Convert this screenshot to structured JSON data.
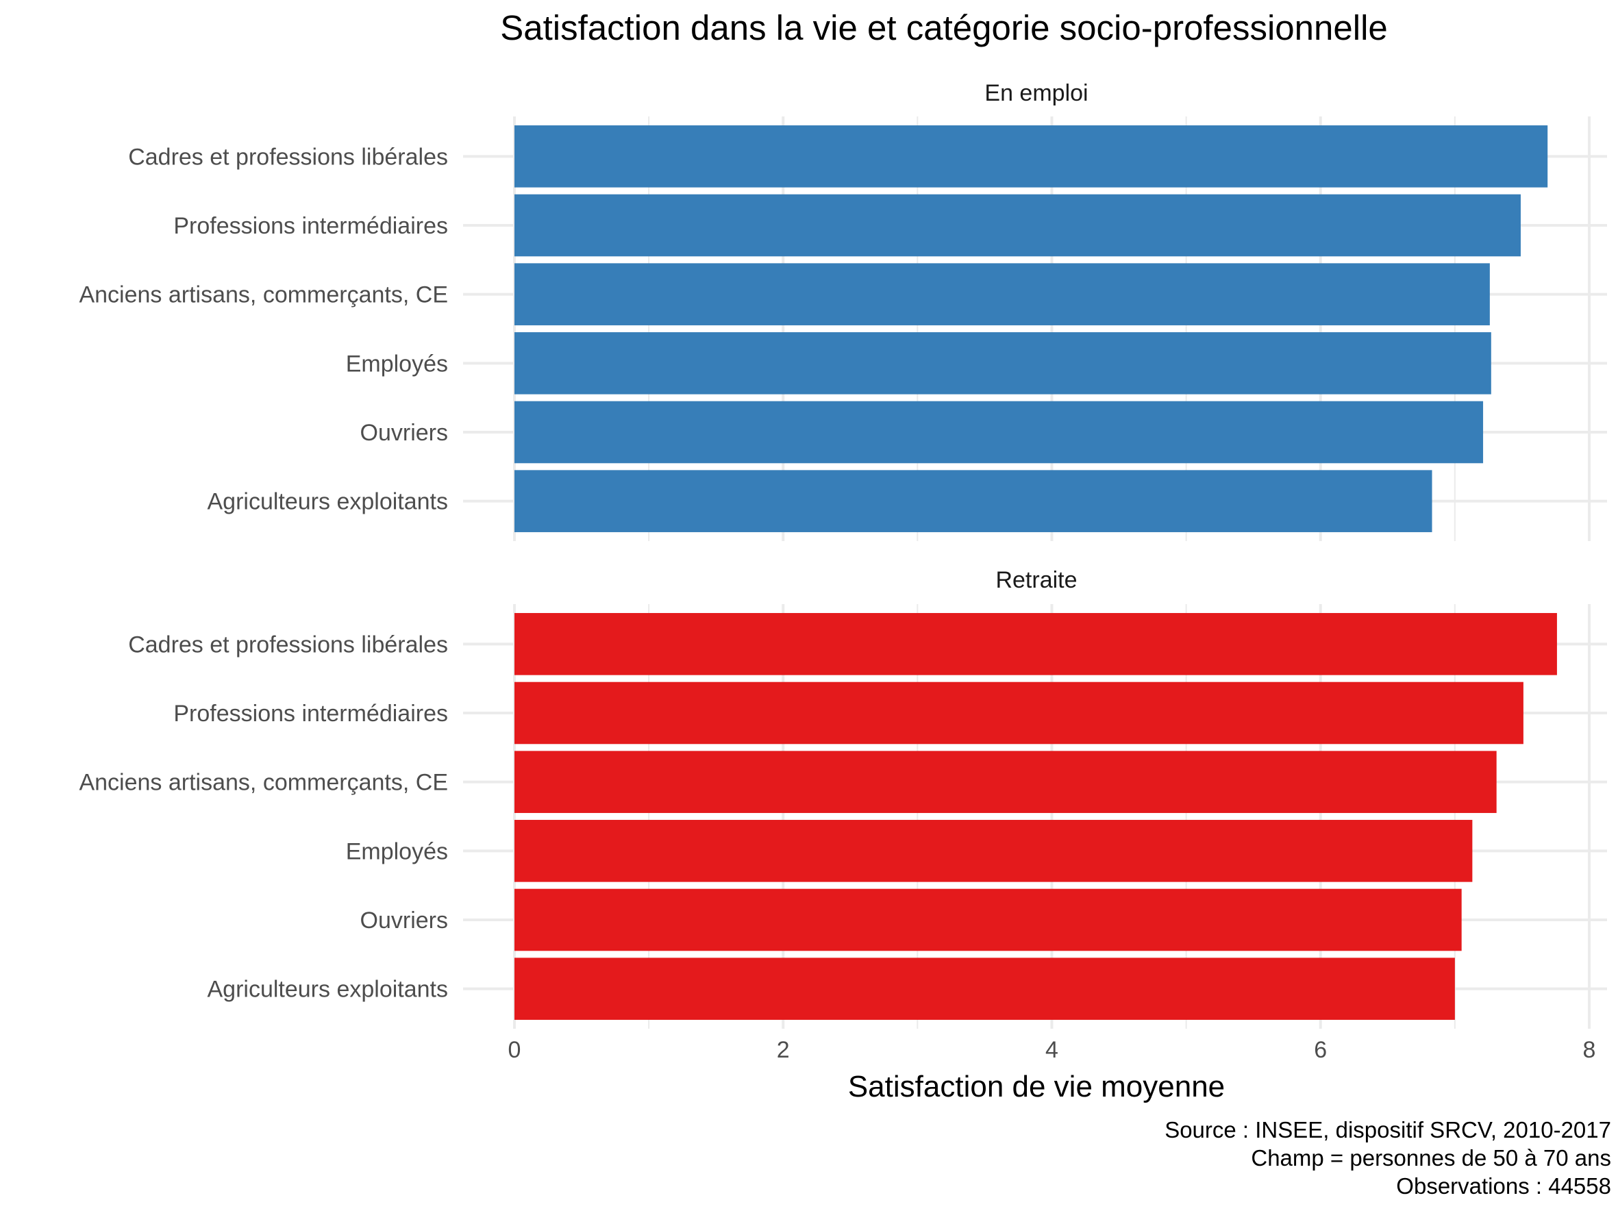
{
  "chart_data": {
    "type": "bar",
    "orientation": "horizontal",
    "title": "Satisfaction dans la vie et catégorie socio-professionnelle",
    "xlabel": "Satisfaction de vie moyenne",
    "ylabel": "",
    "xlim": [
      0,
      8
    ],
    "x_ticks": [
      "0",
      "2",
      "4",
      "6",
      "8"
    ],
    "grid": true,
    "legend": "none",
    "categories": [
      "Cadres et professions libérales",
      "Professions intermédiaires",
      "Anciens artisans, commerçants, CE",
      "Employés",
      "Ouvriers",
      "Agriculteurs exploitants"
    ],
    "panels": [
      {
        "label": "En emploi",
        "color": "#377eb8",
        "values": [
          7.69,
          7.49,
          7.26,
          7.27,
          7.21,
          6.83
        ]
      },
      {
        "label": "Retraite",
        "color": "#e41a1c",
        "values": [
          7.76,
          7.51,
          7.31,
          7.13,
          7.05,
          7.0
        ]
      }
    ],
    "caption": [
      "Source : INSEE, dispositif SRCV, 2010-2017",
      "Champ = personnes de 50 à 70 ans",
      "Observations : 44558"
    ]
  }
}
